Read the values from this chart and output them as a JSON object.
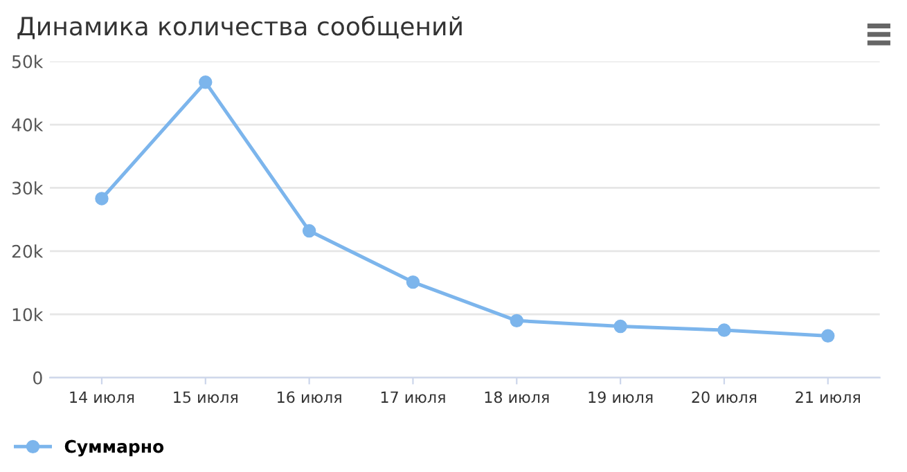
{
  "chart_data": {
    "type": "line",
    "title": "Динамика количества сообщений",
    "categories": [
      "14 июля",
      "15 июля",
      "16 июля",
      "17 июля",
      "18 июля",
      "19 июля",
      "20 июля",
      "21 июля"
    ],
    "series": [
      {
        "name": "Суммарно",
        "color": "#7cb5ec",
        "values": [
          28300,
          46700,
          23200,
          15100,
          9000,
          8100,
          7500,
          6600
        ]
      }
    ],
    "ylim": [
      0,
      50000
    ],
    "yticks": [
      {
        "value": 0,
        "label": "0"
      },
      {
        "value": 10000,
        "label": "10k"
      },
      {
        "value": 20000,
        "label": "20k"
      },
      {
        "value": 30000,
        "label": "30k"
      },
      {
        "value": 40000,
        "label": "40k"
      },
      {
        "value": 50000,
        "label": "50k"
      }
    ],
    "grid": "y",
    "legend": "bottom left",
    "marker": "circle",
    "line_style": "solid"
  }
}
